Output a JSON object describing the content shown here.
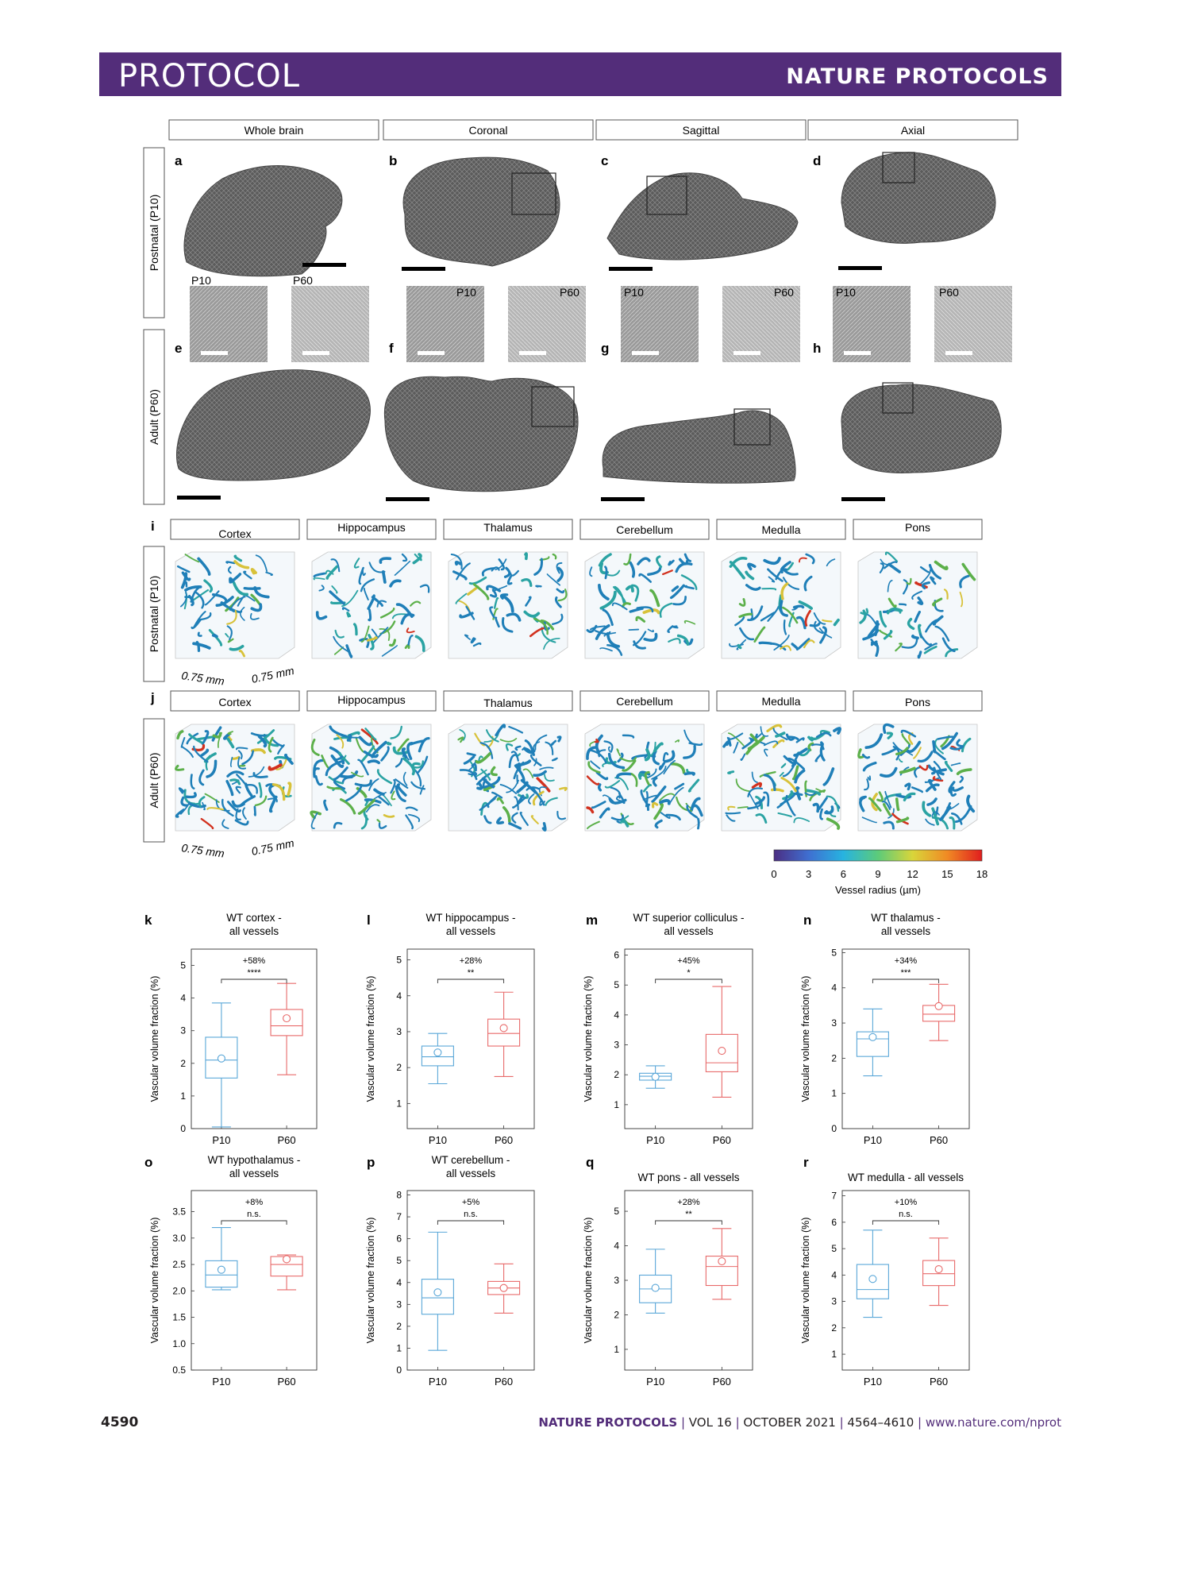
{
  "header": {
    "left": "PROTOCOL",
    "right": "NATURE PROTOCOLS"
  },
  "section_headers": [
    "Whole brain",
    "Coronal",
    "Sagittal",
    "Axial"
  ],
  "row_labels": {
    "postnatal": "Postnatal (P10)",
    "adult": "Adult (P60)"
  },
  "panels_top": [
    "a",
    "b",
    "c",
    "d"
  ],
  "panels_bottom": [
    "e",
    "f",
    "g",
    "h"
  ],
  "inset_labels": {
    "p10": "P10",
    "p60": "P60"
  },
  "region_labels": [
    "Cortex",
    "Hippocampus",
    "Thalamus",
    "Cerebellum",
    "Medulla",
    "Pons"
  ],
  "panel_i": "i",
  "panel_j": "j",
  "dimension_label": "0.75 mm",
  "colorbar": {
    "ticks": [
      "0",
      "3",
      "6",
      "9",
      "12",
      "15",
      "18"
    ],
    "label": "Vessel radius (µm)",
    "colors": [
      "#4b2e83",
      "#3f6fd1",
      "#27b3e0",
      "#5ccb7a",
      "#d9d53a",
      "#f08a24",
      "#e01e1e"
    ]
  },
  "colors": {
    "p10": "#5aa7d8",
    "p60": "#e86a6a",
    "brand": "#532d7a"
  },
  "chart_data": [
    {
      "type": "box",
      "panel": "k",
      "title": [
        "WT cortex -",
        "all vessels"
      ],
      "ylabel": "Vascular volume fraction (%)",
      "ylim": [
        0,
        5.5
      ],
      "yticks": [
        0,
        1,
        2,
        3,
        4,
        5
      ],
      "categories": [
        "P10",
        "P60"
      ],
      "annotation": "+58%",
      "significance": "****",
      "boxes": [
        {
          "min": 0.05,
          "q1": 1.55,
          "median": 2.1,
          "q3": 2.8,
          "max": 3.85,
          "mean": 2.15
        },
        {
          "min": 1.65,
          "q1": 2.85,
          "median": 3.15,
          "q3": 3.65,
          "max": 4.45,
          "mean": 3.38
        }
      ]
    },
    {
      "type": "box",
      "panel": "l",
      "title": [
        "WT hippocampus -",
        "all vessels"
      ],
      "ylabel": "Vascular volume fraction (%)",
      "ylim": [
        0.3,
        5.3
      ],
      "yticks": [
        1,
        2,
        3,
        4,
        5
      ],
      "categories": [
        "P10",
        "P60"
      ],
      "annotation": "+28%",
      "significance": "**",
      "boxes": [
        {
          "min": 1.55,
          "q1": 2.05,
          "median": 2.3,
          "q3": 2.6,
          "max": 2.95,
          "mean": 2.42
        },
        {
          "min": 1.75,
          "q1": 2.6,
          "median": 2.95,
          "q3": 3.35,
          "max": 4.1,
          "mean": 3.1
        }
      ]
    },
    {
      "type": "box",
      "panel": "m",
      "title": [
        "WT superior colliculus -",
        "all vessels"
      ],
      "ylabel": "Vascular volume fraction (%)",
      "ylim": [
        0.2,
        6.2
      ],
      "yticks": [
        1,
        2,
        3,
        4,
        5,
        6
      ],
      "categories": [
        "P10",
        "P60"
      ],
      "annotation": "+45%",
      "significance": "*",
      "boxes": [
        {
          "min": 1.55,
          "q1": 1.82,
          "median": 1.95,
          "q3": 2.05,
          "max": 2.3,
          "mean": 1.93
        },
        {
          "min": 1.25,
          "q1": 2.1,
          "median": 2.4,
          "q3": 3.35,
          "max": 4.95,
          "mean": 2.8
        }
      ]
    },
    {
      "type": "box",
      "panel": "n",
      "title": [
        "WT thalamus -",
        "all vessels"
      ],
      "ylabel": "Vascular volume fraction (%)",
      "ylim": [
        0,
        5.1
      ],
      "yticks": [
        0,
        1,
        2,
        3,
        4,
        5
      ],
      "categories": [
        "P10",
        "P60"
      ],
      "annotation": "+34%",
      "significance": "***",
      "boxes": [
        {
          "min": 1.5,
          "q1": 2.05,
          "median": 2.55,
          "q3": 2.75,
          "max": 3.4,
          "mean": 2.6
        },
        {
          "min": 2.5,
          "q1": 3.05,
          "median": 3.25,
          "q3": 3.5,
          "max": 4.1,
          "mean": 3.48
        }
      ]
    },
    {
      "type": "box",
      "panel": "o",
      "title": [
        "WT hypothalamus -",
        "all vessels"
      ],
      "ylabel": "Vascular volume fraction (%)",
      "ylim": [
        0.5,
        3.9
      ],
      "yticks": [
        0.5,
        1.0,
        1.5,
        2.0,
        2.5,
        3.0,
        3.5
      ],
      "categories": [
        "P10",
        "P60"
      ],
      "annotation": "+8%",
      "significance": "n.s.",
      "boxes": [
        {
          "min": 2.02,
          "q1": 2.07,
          "median": 2.3,
          "q3": 2.57,
          "max": 3.2,
          "mean": 2.4
        },
        {
          "min": 2.02,
          "q1": 2.28,
          "median": 2.5,
          "q3": 2.65,
          "max": 2.68,
          "mean": 2.6
        }
      ]
    },
    {
      "type": "box",
      "panel": "p",
      "title": [
        "WT cerebellum -",
        "all vessels"
      ],
      "ylabel": "Vascular volume fraction (%)",
      "ylim": [
        0,
        8.2
      ],
      "yticks": [
        0,
        1,
        2,
        3,
        4,
        5,
        6,
        7,
        8
      ],
      "categories": [
        "P10",
        "P60"
      ],
      "annotation": "+5%",
      "significance": "n.s.",
      "boxes": [
        {
          "min": 0.9,
          "q1": 2.55,
          "median": 3.3,
          "q3": 4.15,
          "max": 6.3,
          "mean": 3.55
        },
        {
          "min": 2.6,
          "q1": 3.45,
          "median": 3.75,
          "q3": 4.05,
          "max": 4.85,
          "mean": 3.75
        }
      ]
    },
    {
      "type": "box",
      "panel": "q",
      "title": [
        "WT pons - all vessels"
      ],
      "ylabel": "Vascular volume fraction (%)",
      "ylim": [
        0.4,
        5.6
      ],
      "yticks": [
        1,
        2,
        3,
        4,
        5
      ],
      "categories": [
        "P10",
        "P60"
      ],
      "annotation": "+28%",
      "significance": "**",
      "boxes": [
        {
          "min": 2.05,
          "q1": 2.35,
          "median": 2.75,
          "q3": 3.15,
          "max": 3.9,
          "mean": 2.78
        },
        {
          "min": 2.45,
          "q1": 2.85,
          "median": 3.4,
          "q3": 3.7,
          "max": 4.5,
          "mean": 3.55
        }
      ]
    },
    {
      "type": "box",
      "panel": "r",
      "title": [
        "WT medulla - all vessels"
      ],
      "ylabel": "Vascular volume fraction (%)",
      "ylim": [
        0.4,
        7.2
      ],
      "yticks": [
        1,
        2,
        3,
        4,
        5,
        6,
        7
      ],
      "categories": [
        "P10",
        "P60"
      ],
      "annotation": "+10%",
      "significance": "n.s.",
      "boxes": [
        {
          "min": 2.4,
          "q1": 3.1,
          "median": 3.45,
          "q3": 4.4,
          "max": 5.7,
          "mean": 3.85
        },
        {
          "min": 2.85,
          "q1": 3.6,
          "median": 4.05,
          "q3": 4.55,
          "max": 5.4,
          "mean": 4.22
        }
      ]
    }
  ],
  "footer": {
    "page": "4590",
    "journal": "NATURE PROTOCOLS",
    "vol": "VOL 16",
    "date": "OCTOBER 2021",
    "pages": "4564–4610",
    "url": "www.nature.com/nprot"
  }
}
